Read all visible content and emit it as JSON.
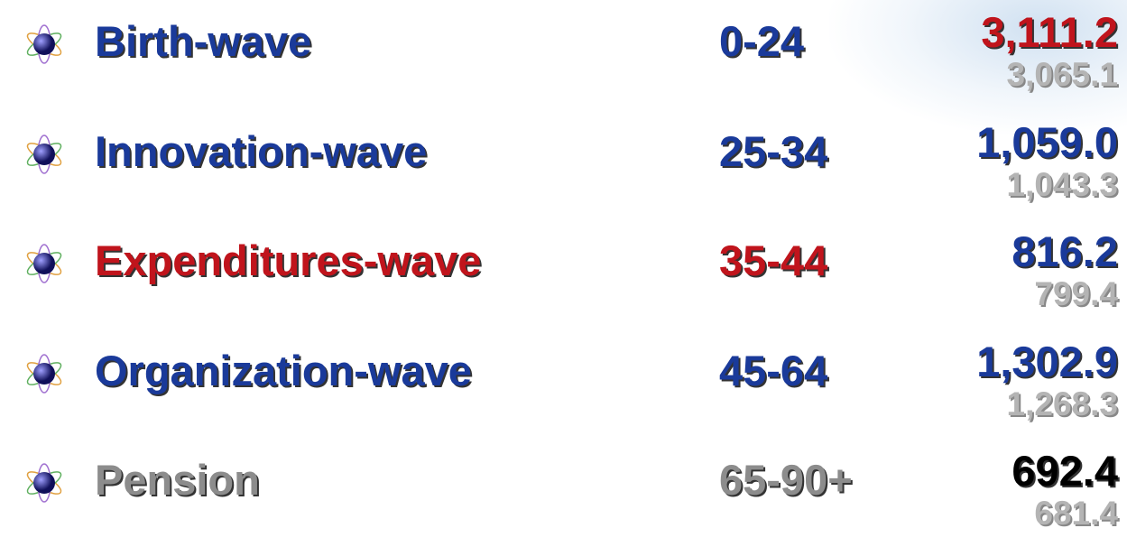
{
  "rows": [
    {
      "label": "Birth-wave",
      "age": "0-24",
      "value": "3,111.2",
      "sub_value": "3,065.1",
      "label_color": "#1a3a9a",
      "age_color": "#1a3a9a",
      "value_color": "#c0141c",
      "sub_color": "#b4b4b4"
    },
    {
      "label": "Innovation-wave",
      "age": "25-34",
      "value": "1,059.0",
      "sub_value": "1,043.3",
      "label_color": "#1a3a9a",
      "age_color": "#1a3a9a",
      "value_color": "#1a3a9a",
      "sub_color": "#b4b4b4"
    },
    {
      "label": "Expenditures-wave",
      "age": "35-44",
      "value": "816.2",
      "sub_value": "799.4",
      "label_color": "#c0141c",
      "age_color": "#c0141c",
      "value_color": "#1a3a9a",
      "sub_color": "#b4b4b4"
    },
    {
      "label": "Organization-wave",
      "age": "45-64",
      "value": "1,302.9",
      "sub_value": "1,268.3",
      "label_color": "#1a3a9a",
      "age_color": "#1a3a9a",
      "value_color": "#1a3a9a",
      "sub_color": "#b4b4b4"
    },
    {
      "label": "Pension",
      "age": "65-90+",
      "value": "692.4",
      "sub_value": "681.4",
      "label_color": "#8c8c8c",
      "age_color": "#8c8c8c",
      "value_color": "#000000",
      "sub_color": "#b4b4b4"
    }
  ]
}
